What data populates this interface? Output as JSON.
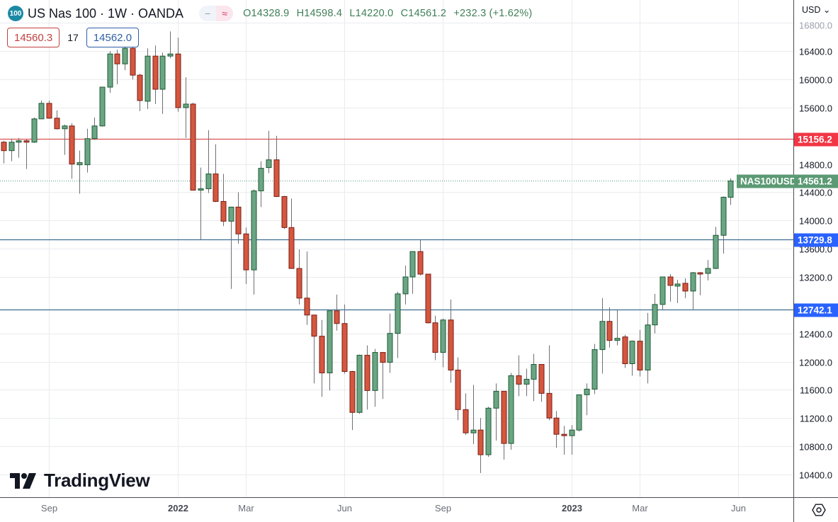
{
  "header": {
    "symbol_badge": "100",
    "title": "US Nas 100 · 1W · OANDA",
    "toggle_minus": "−",
    "toggle_wave": "≈",
    "ohlc": {
      "open": "O14328.9",
      "high": "H14598.4",
      "low": "L14220.0",
      "close": "C14561.2",
      "change": "+232.3 (+1.62%)"
    },
    "sell_price": "14560.3",
    "spread": "17",
    "buy_price": "14562.0"
  },
  "price_axis": {
    "currency": "USD ⌄"
  },
  "watermark": "TradingView",
  "colors": {
    "up_fill": "#6aa584",
    "up_border": "#1f5a34",
    "down_fill": "#d4573f",
    "down_border": "#7a1e14",
    "wick": "#6f7075",
    "resistance": "#f23645",
    "support": "#2962ff",
    "support_line": "#3d6d8e",
    "last_price": "#5b9a74"
  },
  "chart_data": {
    "type": "candlestick",
    "interval": "1W",
    "currency": "USD",
    "ylim": [
      10078,
      17125
    ],
    "grid": true,
    "y_ticks": [
      16800,
      16400,
      16000,
      15600,
      14800,
      14400,
      14000,
      13600,
      13200,
      12400,
      12000,
      11600,
      11200,
      10800,
      10400
    ],
    "y_tick_labels": [
      "16800.0",
      "16400.0",
      "16000.0",
      "15600.0",
      "14800.0",
      "14400.0",
      "14000.0",
      "13600.0",
      "13200.0",
      "12400.0",
      "12000.0",
      "11600.0",
      "11200.0",
      "10800.0",
      "10400.0"
    ],
    "x_ticks": [
      {
        "date": "2021-09-06",
        "label": "Sep",
        "year": false
      },
      {
        "date": "2022-01-03",
        "label": "2022",
        "year": true
      },
      {
        "date": "2022-03-07",
        "label": "Mar",
        "year": false
      },
      {
        "date": "2022-06-06",
        "label": "Jun",
        "year": false
      },
      {
        "date": "2022-09-05",
        "label": "Sep",
        "year": false
      },
      {
        "date": "2023-01-02",
        "label": "2023",
        "year": true
      },
      {
        "date": "2023-03-06",
        "label": "Mar",
        "year": false
      },
      {
        "date": "2023-06-05",
        "label": "Jun",
        "year": false
      }
    ],
    "horizontal_lines": [
      {
        "price": 15156.2,
        "label": "15156.2",
        "kind": "resistance"
      },
      {
        "price": 13729.8,
        "label": "13729.8",
        "kind": "support"
      },
      {
        "price": 12742.1,
        "label": "12742.1",
        "kind": "support"
      }
    ],
    "last_price": {
      "price": 14561.2,
      "label": "14561.2",
      "name": "NAS100USD"
    },
    "fields": [
      "date",
      "open",
      "high",
      "low",
      "close"
    ],
    "candles": [
      [
        "2021-07-26",
        15110,
        15130,
        14810,
        14990
      ],
      [
        "2021-08-02",
        14990,
        15160,
        14840,
        15110
      ],
      [
        "2021-08-09",
        15110,
        15170,
        14890,
        15130
      ],
      [
        "2021-08-16",
        15130,
        15150,
        14730,
        15110
      ],
      [
        "2021-08-23",
        15110,
        15460,
        15100,
        15440
      ],
      [
        "2021-08-30",
        15440,
        15700,
        15440,
        15660
      ],
      [
        "2021-09-06",
        15660,
        15700,
        15440,
        15450
      ],
      [
        "2021-09-13",
        15450,
        15560,
        15290,
        15300
      ],
      [
        "2021-09-20",
        15300,
        15360,
        14930,
        15340
      ],
      [
        "2021-09-27",
        15340,
        15380,
        14590,
        14800
      ],
      [
        "2021-10-04",
        14790,
        14990,
        14380,
        14820
      ],
      [
        "2021-10-11",
        14790,
        15300,
        14680,
        15160
      ],
      [
        "2021-10-18",
        15160,
        15460,
        15140,
        15340
      ],
      [
        "2021-10-25",
        15340,
        15890,
        15330,
        15890
      ],
      [
        "2021-11-01",
        15890,
        16400,
        15810,
        16360
      ],
      [
        "2021-11-08",
        16360,
        16420,
        15930,
        16220
      ],
      [
        "2021-11-15",
        16220,
        16560,
        16130,
        16440
      ],
      [
        "2021-11-22",
        16440,
        16500,
        16000,
        16060
      ],
      [
        "2021-11-29",
        16060,
        16080,
        15550,
        15700
      ],
      [
        "2021-12-06",
        15690,
        16440,
        15580,
        16330
      ],
      [
        "2021-12-13",
        16330,
        16480,
        15650,
        15860
      ],
      [
        "2021-12-20",
        15860,
        16380,
        15510,
        16330
      ],
      [
        "2021-12-27",
        16330,
        16680,
        16300,
        16360
      ],
      [
        "2022-01-03",
        16360,
        16590,
        15540,
        15600
      ],
      [
        "2022-01-10",
        15600,
        16030,
        15170,
        15650
      ],
      [
        "2022-01-17",
        15650,
        15670,
        14430,
        14430
      ],
      [
        "2022-01-24",
        14430,
        14750,
        13730,
        14450
      ],
      [
        "2022-01-31",
        14450,
        15280,
        14390,
        14660
      ],
      [
        "2022-02-07",
        14660,
        15080,
        14260,
        14270
      ],
      [
        "2022-02-14",
        14270,
        14660,
        13920,
        13990
      ],
      [
        "2022-02-21",
        13990,
        14195,
        13030,
        14190
      ],
      [
        "2022-02-28",
        14190,
        14400,
        13670,
        13810
      ],
      [
        "2022-03-07",
        13810,
        13900,
        13100,
        13300
      ],
      [
        "2022-03-14",
        13300,
        14440,
        12950,
        14420
      ],
      [
        "2022-03-21",
        14420,
        14840,
        14190,
        14740
      ],
      [
        "2022-03-28",
        14750,
        15270,
        14670,
        14860
      ],
      [
        "2022-04-04",
        14860,
        15200,
        14330,
        14340
      ],
      [
        "2022-04-11",
        14340,
        14350,
        13880,
        13900
      ],
      [
        "2022-04-18",
        13900,
        14310,
        13320,
        13320
      ],
      [
        "2022-04-25",
        13320,
        13590,
        12810,
        12900
      ],
      [
        "2022-05-02",
        12900,
        13560,
        12520,
        12660
      ],
      [
        "2022-05-09",
        12660,
        12660,
        11690,
        12360
      ],
      [
        "2022-05-16",
        12360,
        12590,
        11500,
        11840
      ],
      [
        "2022-05-23",
        11840,
        12720,
        11590,
        12720
      ],
      [
        "2022-05-30",
        12720,
        12950,
        12440,
        12540
      ],
      [
        "2022-06-06",
        12540,
        12810,
        11830,
        11860
      ],
      [
        "2022-06-13",
        11860,
        11870,
        11030,
        11280
      ],
      [
        "2022-06-20",
        11280,
        12100,
        11260,
        12090
      ],
      [
        "2022-06-27",
        12090,
        12230,
        11320,
        11590
      ],
      [
        "2022-07-04",
        11590,
        12180,
        11360,
        12130
      ],
      [
        "2022-07-11",
        12130,
        12130,
        11470,
        11990
      ],
      [
        "2022-07-18",
        11990,
        12680,
        11840,
        12400
      ],
      [
        "2022-07-25",
        12400,
        12990,
        12050,
        12960
      ],
      [
        "2022-08-01",
        12960,
        13360,
        12810,
        13200
      ],
      [
        "2022-08-08",
        13200,
        13560,
        12960,
        13560
      ],
      [
        "2022-08-15",
        13560,
        13730,
        13220,
        13240
      ],
      [
        "2022-08-22",
        13240,
        13240,
        12540,
        12550
      ],
      [
        "2022-08-29",
        12550,
        12650,
        12020,
        12130
      ],
      [
        "2022-09-05",
        12130,
        12610,
        11920,
        12590
      ],
      [
        "2022-09-12",
        12590,
        12880,
        11700,
        11880
      ],
      [
        "2022-09-19",
        11880,
        12060,
        11170,
        11320
      ],
      [
        "2022-09-26",
        11320,
        11550,
        10960,
        10990
      ],
      [
        "2022-10-03",
        10990,
        11670,
        10830,
        11030
      ],
      [
        "2022-10-10",
        11030,
        11200,
        10420,
        10680
      ],
      [
        "2022-10-17",
        10680,
        11360,
        10650,
        11340
      ],
      [
        "2022-10-24",
        11340,
        11690,
        10880,
        11580
      ],
      [
        "2022-10-31",
        11580,
        11580,
        10610,
        10840
      ],
      [
        "2022-11-07",
        10840,
        11840,
        10750,
        11800
      ],
      [
        "2022-11-14",
        11800,
        12090,
        11510,
        11680
      ],
      [
        "2022-11-21",
        11680,
        11900,
        11510,
        11750
      ],
      [
        "2022-11-28",
        11750,
        12110,
        11440,
        11960
      ],
      [
        "2022-12-05",
        11960,
        11960,
        11430,
        11550
      ],
      [
        "2022-12-12",
        11550,
        12230,
        11170,
        11200
      ],
      [
        "2022-12-19",
        11200,
        11300,
        10780,
        10970
      ],
      [
        "2022-12-26",
        10970,
        11090,
        10680,
        10950
      ],
      [
        "2023-01-02",
        10950,
        11100,
        10680,
        11030
      ],
      [
        "2023-01-09",
        11030,
        11530,
        11010,
        11530
      ],
      [
        "2023-01-16",
        11530,
        11690,
        11240,
        11610
      ],
      [
        "2023-01-23",
        11610,
        12250,
        11540,
        12170
      ],
      [
        "2023-01-30",
        12170,
        12900,
        11830,
        12570
      ],
      [
        "2023-02-06",
        12570,
        12770,
        12200,
        12300
      ],
      [
        "2023-02-13",
        12300,
        12740,
        12230,
        12330
      ],
      [
        "2023-02-20",
        12350,
        12380,
        11910,
        11970
      ],
      [
        "2023-02-27",
        11970,
        12300,
        11800,
        12290
      ],
      [
        "2023-03-06",
        12290,
        12450,
        11790,
        11880
      ],
      [
        "2023-03-13",
        11880,
        12690,
        11690,
        12520
      ],
      [
        "2023-03-20",
        12520,
        12960,
        12400,
        12810
      ],
      [
        "2023-03-27",
        12810,
        13200,
        12730,
        13200
      ],
      [
        "2023-04-03",
        13200,
        13240,
        12850,
        13080
      ],
      [
        "2023-04-10",
        13070,
        13160,
        12830,
        13100
      ],
      [
        "2023-04-17",
        13110,
        13180,
        12900,
        13000
      ],
      [
        "2023-04-24",
        13000,
        13270,
        12740,
        13260
      ],
      [
        "2023-05-01",
        13260,
        13270,
        12940,
        13240
      ],
      [
        "2023-05-08",
        13250,
        13440,
        13150,
        13320
      ],
      [
        "2023-05-15",
        13320,
        13910,
        13310,
        13790
      ],
      [
        "2023-05-22",
        13790,
        14340,
        13530,
        14330
      ],
      [
        "2023-05-29",
        14328.9,
        14598.4,
        14220.0,
        14561.2
      ]
    ]
  }
}
